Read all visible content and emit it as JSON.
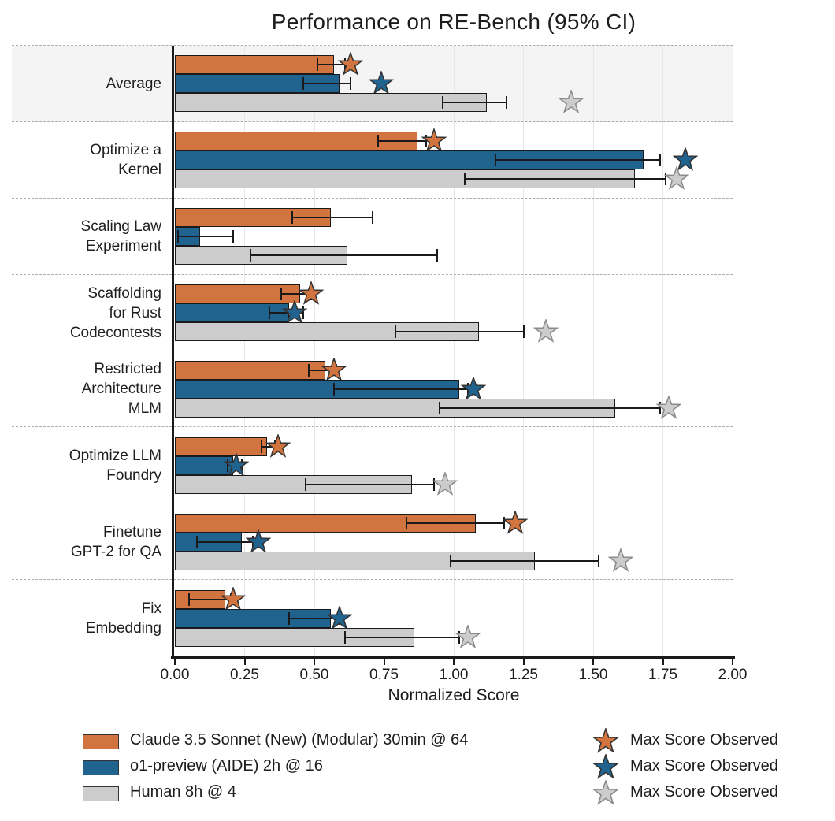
{
  "colors": {
    "claude_orange": "#D1743F",
    "o1_blue": "#20638F",
    "human_gray": "#CCCCCC",
    "bar_edge": "#1A1A1A",
    "star_edge_dark": "#333333",
    "star_edge_gray": "#8A8A8A",
    "band_bg": "#F4F4F4",
    "gridline": "#E7E7E7",
    "separator": "#ACACAC",
    "axis": "#1A1A1A",
    "text": "#1F1F1F"
  },
  "chart_data": {
    "type": "bar",
    "orientation": "horizontal",
    "title": "Performance on RE-Bench (95% CI)",
    "xlabel": "Normalized Score",
    "xlim": [
      0,
      2.0
    ],
    "xticks": [
      0.0,
      0.25,
      0.5,
      0.75,
      1.0,
      1.25,
      1.5,
      1.75,
      2.0
    ],
    "xtick_labels": [
      "0.00",
      "0.25",
      "0.50",
      "0.75",
      "1.00",
      "1.25",
      "1.50",
      "1.75",
      "2.00"
    ],
    "grid": "vertical-light",
    "error_bars": "95% CI",
    "series": [
      {
        "name": "Claude 3.5 Sonnet (New) (Modular) 30min @ 64",
        "color_key": "claude_orange"
      },
      {
        "name": "o1-preview (AIDE) 2h @ 16",
        "color_key": "o1_blue"
      },
      {
        "name": "Human 8h @ 4",
        "color_key": "human_gray"
      }
    ],
    "max_score_legend_label": "Max Score Observed",
    "categories": [
      {
        "label_lines": [
          "Average"
        ],
        "band": true,
        "values": [
          0.57,
          0.59,
          1.12
        ],
        "ci": [
          [
            0.51,
            0.61
          ],
          [
            0.46,
            0.63
          ],
          [
            0.96,
            1.19
          ]
        ],
        "max_scores": [
          0.63,
          0.74,
          1.42
        ]
      },
      {
        "label_lines": [
          "Optimize a",
          "Kernel"
        ],
        "band": false,
        "values": [
          0.87,
          1.68,
          1.65
        ],
        "ci": [
          [
            0.73,
            0.9
          ],
          [
            1.15,
            1.74
          ],
          [
            1.04,
            1.76
          ]
        ],
        "max_scores": [
          0.93,
          1.83,
          1.8
        ]
      },
      {
        "label_lines": [
          "Scaling Law",
          "Experiment"
        ],
        "band": false,
        "values": [
          0.56,
          0.09,
          0.62
        ],
        "ci": [
          [
            0.42,
            0.71
          ],
          [
            0.01,
            0.21
          ],
          [
            0.27,
            0.94
          ]
        ],
        "max_scores": [
          null,
          null,
          null
        ]
      },
      {
        "label_lines": [
          "Scaffolding",
          "for Rust",
          "Codecontests"
        ],
        "band": false,
        "values": [
          0.45,
          0.41,
          1.09
        ],
        "ci": [
          [
            0.38,
            0.49
          ],
          [
            0.34,
            0.46
          ],
          [
            0.79,
            1.25
          ]
        ],
        "max_scores": [
          0.49,
          0.43,
          1.33
        ]
      },
      {
        "label_lines": [
          "Restricted",
          "Architecture",
          "MLM"
        ],
        "band": false,
        "values": [
          0.54,
          1.02,
          1.58
        ],
        "ci": [
          [
            0.48,
            0.58
          ],
          [
            0.57,
            1.05
          ],
          [
            0.95,
            1.74
          ]
        ],
        "max_scores": [
          0.57,
          1.07,
          1.77
        ]
      },
      {
        "label_lines": [
          "Optimize LLM",
          "Foundry"
        ],
        "band": false,
        "values": [
          0.33,
          0.21,
          0.85
        ],
        "ci": [
          [
            0.31,
            0.36
          ],
          [
            0.19,
            0.24
          ],
          [
            0.47,
            0.93
          ]
        ],
        "max_scores": [
          0.37,
          0.22,
          0.97
        ]
      },
      {
        "label_lines": [
          "Finetune",
          "GPT-2 for QA"
        ],
        "band": false,
        "values": [
          1.08,
          0.24,
          1.29
        ],
        "ci": [
          [
            0.83,
            1.18
          ],
          [
            0.08,
            0.28
          ],
          [
            0.99,
            1.52
          ]
        ],
        "max_scores": [
          1.22,
          0.3,
          1.6
        ]
      },
      {
        "label_lines": [
          "Fix",
          "Embedding"
        ],
        "band": false,
        "values": [
          0.18,
          0.56,
          0.86
        ],
        "ci": [
          [
            0.05,
            0.2
          ],
          [
            0.41,
            0.59
          ],
          [
            0.61,
            1.02
          ]
        ],
        "max_scores": [
          0.21,
          0.59,
          1.05
        ]
      }
    ]
  }
}
